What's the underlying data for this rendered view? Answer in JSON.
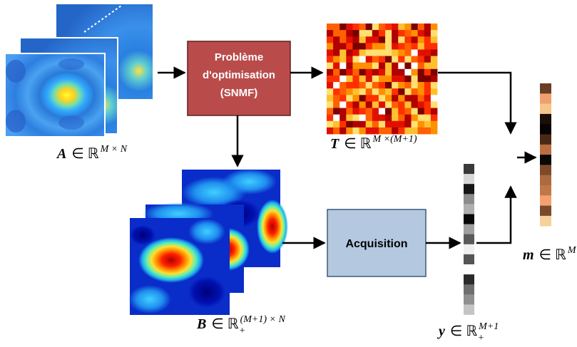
{
  "blocks": {
    "optim": {
      "lines": [
        "Problème",
        "d'optimisation",
        "(SNMF)"
      ],
      "fill": "#b94c4b",
      "stroke": "#5a2020",
      "text_color": "#ffffff"
    },
    "acq": {
      "label": "Acquisition",
      "fill": "#b4c8df",
      "stroke": "#3c5a7c",
      "text_color": "#000000"
    }
  },
  "labels": {
    "A": {
      "sym": "A",
      "rel": "∈ ℝ",
      "sup": "M × N"
    },
    "T": {
      "sym": "T",
      "rel": "∈ ℝ",
      "sup": "M ×(M+1)"
    },
    "B": {
      "sym": "B",
      "rel": "∈ ℝ",
      "sub": "+",
      "sup": "(M+1) × N"
    },
    "y": {
      "sym": "y",
      "rel": "∈ ℝ",
      "sub": "+",
      "sup": "M+1"
    },
    "m": {
      "sym": "m",
      "rel": "∈ ℝ",
      "sup": "M"
    }
  },
  "colors": {
    "y_vector": [
      "#3a3a3a",
      "#d8d8d8",
      "#151515",
      "#8c8c8c",
      "#b0b0b0",
      "#080808",
      "#a0a0a0",
      "#5a5a5a",
      "#f0f0f0",
      "#555555",
      "#ffffff",
      "#2a2a2a",
      "#6e6e6e",
      "#909090",
      "#c4c4c4"
    ],
    "m_vector": [
      "#6a3e22",
      "#f0a070",
      "#f6c58a",
      "#1a0e08",
      "#060302",
      "#4a2814",
      "#b86e40",
      "#0a0604",
      "#7e4a2a",
      "#ad6a3e",
      "#c07848",
      "#f4a070",
      "#7a4a2a",
      "#f8d09a"
    ]
  }
}
